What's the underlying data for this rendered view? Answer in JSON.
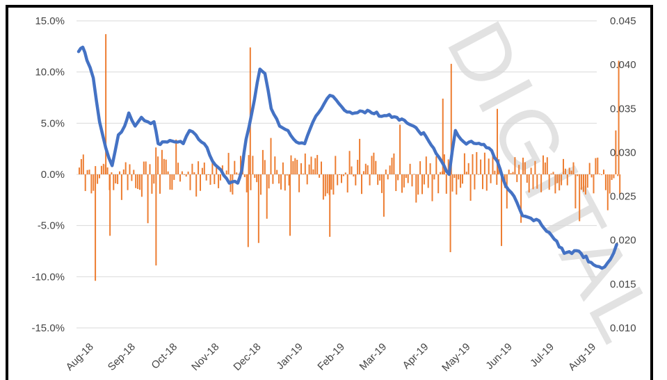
{
  "watermark": "DIGITAL",
  "chart_data": {
    "type": "bar+line",
    "title": "",
    "xlabel": "",
    "ylabel_left": "",
    "ylabel_right": "",
    "grid": true,
    "legend": "none",
    "x_ticks": [
      "Aug-18",
      "Sep-18",
      "Oct-18",
      "Nov-18",
      "Dec-18",
      "Jan-19",
      "Feb-19",
      "Mar-19",
      "Apr-19",
      "May-19",
      "Jun-19",
      "Jul-19",
      "Aug-19"
    ],
    "y_left": {
      "ticks": [
        "15.0%",
        "10.0%",
        "5.0%",
        "0.0%",
        "-5.0%",
        "-10.0%",
        "-15.0%"
      ],
      "range": [
        -15,
        15
      ],
      "unit": "%"
    },
    "y_right": {
      "ticks": [
        "0.045",
        "0.040",
        "0.035",
        "0.030",
        "0.025",
        "0.020",
        "0.015",
        "0.010"
      ],
      "range": [
        0.01,
        0.045
      ]
    },
    "colors": {
      "bars": "#ED7D31",
      "line": "#4472C4"
    },
    "series": [
      {
        "kind": "line",
        "axis": "right",
        "points": [
          [
            "Aug-18",
            0.0415
          ],
          [
            "Aug-18+0.10",
            0.042
          ],
          [
            "Aug-18+0.20",
            0.0405
          ],
          [
            "Aug-18+0.35",
            0.0385
          ],
          [
            "Aug-18+0.50",
            0.0335
          ],
          [
            "Aug-18+0.65",
            0.0305
          ],
          [
            "Aug-18+0.80",
            0.0285
          ],
          [
            "Aug-18+0.95",
            0.032
          ],
          [
            "Sep-18+0.10",
            0.033
          ],
          [
            "Sep-18+0.20",
            0.0345
          ],
          [
            "Sep-18+0.35",
            0.033
          ],
          [
            "Sep-18+0.50",
            0.034
          ],
          [
            "Sep-18+0.65",
            0.0335
          ],
          [
            "Sep-18+0.80",
            0.0335
          ],
          [
            "Sep-18+0.90",
            0.031
          ],
          [
            "Oct-18",
            0.0312
          ],
          [
            "Oct-18+0.30",
            0.0312
          ],
          [
            "Oct-18+0.50",
            0.031
          ],
          [
            "Oct-18+0.65",
            0.0325
          ],
          [
            "Oct-18+0.80",
            0.032
          ],
          [
            "Nov-18",
            0.031
          ],
          [
            "Nov-18+0.20",
            0.029
          ],
          [
            "Nov-18+0.40",
            0.028
          ],
          [
            "Nov-18+0.60",
            0.0265
          ],
          [
            "Nov-18+0.80",
            0.0265
          ],
          [
            "Nov-18+0.90",
            0.028
          ],
          [
            "Dec-18",
            0.0315
          ],
          [
            "Dec-18+0.20",
            0.036
          ],
          [
            "Dec-18+0.33",
            0.0395
          ],
          [
            "Dec-18+0.45",
            0.039
          ],
          [
            "Dec-18+0.60",
            0.035
          ],
          [
            "Dec-18+0.80",
            0.033
          ],
          [
            "Jan-19",
            0.0325
          ],
          [
            "Jan-19+0.20",
            0.0312
          ],
          [
            "Jan-19+0.40",
            0.031
          ],
          [
            "Jan-19+0.60",
            0.0335
          ],
          [
            "Jan-19+0.80",
            0.035
          ],
          [
            "Feb-19",
            0.0365
          ],
          [
            "Feb-19+0.15",
            0.036
          ],
          [
            "Feb-19+0.35",
            0.0348
          ],
          [
            "Feb-19+0.60",
            0.0345
          ],
          [
            "Feb-19+0.90",
            0.0348
          ],
          [
            "Mar-19",
            0.0345
          ],
          [
            "Mar-19+0.30",
            0.0342
          ],
          [
            "Mar-19+0.60",
            0.034
          ],
          [
            "Mar-19+0.90",
            0.0332
          ],
          [
            "Apr-19",
            0.033
          ],
          [
            "Apr-19+0.30",
            0.0318
          ],
          [
            "Apr-19+0.60",
            0.0295
          ],
          [
            "Apr-19+0.85",
            0.0275
          ],
          [
            "May-19",
            0.0325
          ],
          [
            "May-19+0.20",
            0.0312
          ],
          [
            "May-19+0.50",
            0.031
          ],
          [
            "May-19+0.80",
            0.0305
          ],
          [
            "Jun-19",
            0.029
          ],
          [
            "Jun-19+0.20",
            0.0262
          ],
          [
            "Jun-19+0.40",
            0.025
          ],
          [
            "Jun-19+0.60",
            0.0228
          ],
          [
            "Jun-19+0.80",
            0.0225
          ],
          [
            "Jul-19",
            0.0222
          ],
          [
            "Jul-19+0.30",
            0.0205
          ],
          [
            "Jul-19+0.60",
            0.0185
          ],
          [
            "Jul-19+0.90",
            0.0188
          ],
          [
            "Aug-19",
            0.0185
          ],
          [
            "Aug-19+0.30",
            0.0172
          ],
          [
            "Aug-19+0.50",
            0.0168
          ],
          [
            "Aug-19+0.70",
            0.0178
          ],
          [
            "Aug-19+0.85",
            0.0195
          ]
        ]
      },
      {
        "kind": "bar",
        "axis": "left",
        "description": "daily returns (%)",
        "peaks": [
          [
            "Aug-18+0.40",
            -10.4
          ],
          [
            "Aug-18+0.65",
            13.7
          ],
          [
            "Aug-18+0.75",
            -6.0
          ],
          [
            "Sep-18+0.85",
            -8.9
          ],
          [
            "Dec-18+0.05",
            -7.1
          ],
          [
            "Dec-18+0.10",
            12.4
          ],
          [
            "Dec-18+0.30",
            -6.7
          ],
          [
            "Jan-19+0.05",
            -6.0
          ],
          [
            "Feb-19",
            -6.1
          ],
          [
            "Apr-19+0.70",
            7.4
          ],
          [
            "Apr-19+0.90",
            10.8
          ],
          [
            "Apr-19+0.88",
            -7.6
          ],
          [
            "Jun-19",
            6.4
          ],
          [
            "Jun-19+0.10",
            -7.0
          ],
          [
            "Aug-19+0.90",
            11.1
          ]
        ]
      }
    ]
  }
}
